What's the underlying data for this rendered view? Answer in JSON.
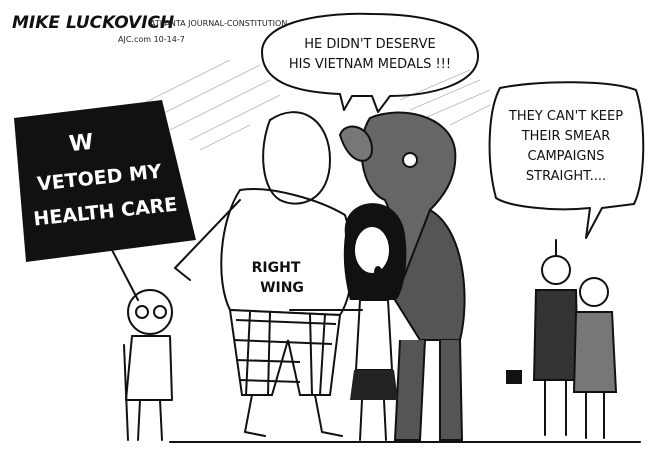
{
  "signature": {
    "artist": "MIKE LUCKOVICH",
    "paper": "ATLANTA JOURNAL-CONSTITUTION",
    "site": "AJC.com 10-14-7"
  },
  "sign": {
    "lines": [
      "W",
      "VETOED MY",
      "HEALTH CARE"
    ]
  },
  "bubbles": [
    {
      "lines": [
        "HE DIDN'T DESERVE",
        "HIS VIETNAM MEDALS !!!"
      ]
    },
    {
      "lines": [
        "THEY CAN'T KEEP",
        "THEIR SMEAR",
        "CAMPAIGNS",
        "STRAIGHT...."
      ]
    }
  ],
  "shirt": {
    "lines": [
      "RIGHT",
      "WING"
    ]
  }
}
